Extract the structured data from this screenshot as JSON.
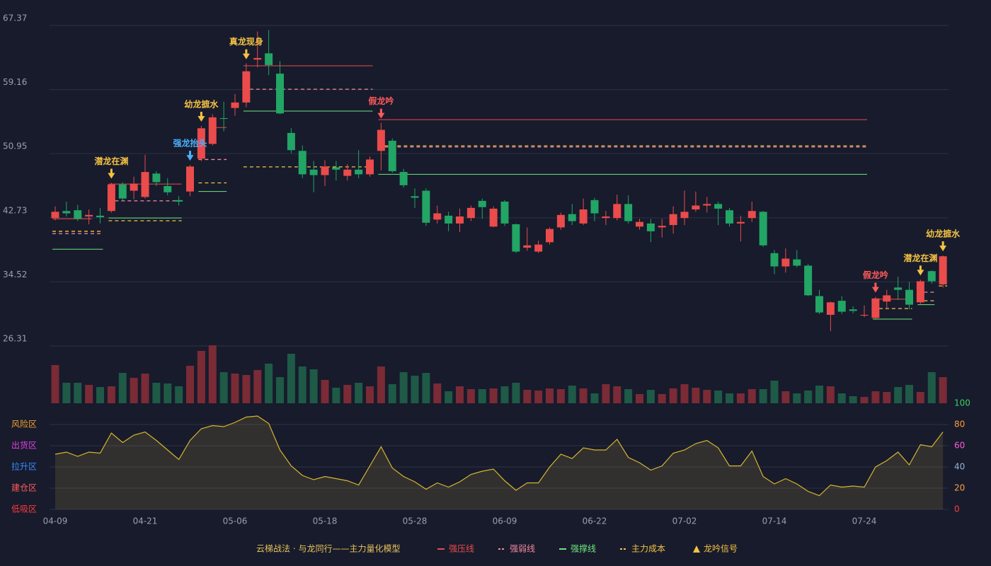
{
  "chart_data": {
    "type": "candlestick",
    "categories": [
      "04-09",
      null,
      null,
      null,
      null,
      null,
      null,
      null,
      "04-21",
      null,
      null,
      null,
      null,
      null,
      null,
      null,
      "05-06",
      null,
      null,
      null,
      null,
      null,
      null,
      null,
      "05-18",
      null,
      null,
      null,
      null,
      null,
      null,
      null,
      "05-28",
      null,
      null,
      null,
      null,
      null,
      null,
      null,
      "06-09",
      null,
      null,
      null,
      null,
      null,
      null,
      null,
      "06-22",
      null,
      null,
      null,
      null,
      null,
      null,
      null,
      "07-02",
      null,
      null,
      null,
      null,
      null,
      null,
      null,
      "07-14",
      null,
      null,
      null,
      null,
      null,
      null,
      null,
      "07-24",
      null,
      null,
      null,
      null,
      null,
      null,
      null
    ],
    "open": [
      42.7,
      43.6,
      43.7,
      42.9,
      43.0,
      43.6,
      47.0,
      46.2,
      45.4,
      48.4,
      46.8,
      45.0,
      46.1,
      50.3,
      52.2,
      55.5,
      56.8,
      57.5,
      63.0,
      63.8,
      61.2,
      53.6,
      51.3,
      48.9,
      48.2,
      49.2,
      48.1,
      48.9,
      48.3,
      51.3,
      52.6,
      48.6,
      45.5,
      46.2,
      42.5,
      43.0,
      42.0,
      42.7,
      44.9,
      41.6,
      44.8,
      41.9,
      38.9,
      38.4,
      39.6,
      41.5,
      43.2,
      42.0,
      45.0,
      42.7,
      42.7,
      44.5,
      41.6,
      42.0,
      41.5,
      41.8,
      42.7,
      43.8,
      44.3,
      44.5,
      43.7,
      42.0,
      42.7,
      43.5,
      38.2,
      36.5,
      37.4,
      36.6,
      32.7,
      30.3,
      32.1,
      31.0,
      30.2,
      29.9,
      32.0,
      33.8,
      33.5,
      31.9,
      35.9,
      34.2
    ],
    "high": [
      44.2,
      44.8,
      44.4,
      43.8,
      44.0,
      47.2,
      47.3,
      48.0,
      50.8,
      48.7,
      47.8,
      45.5,
      49.5,
      54.5,
      56.0,
      57.6,
      58.6,
      62.5,
      66.6,
      66.8,
      62.8,
      54.2,
      52.0,
      50.0,
      50.1,
      50.0,
      49.6,
      51.4,
      50.6,
      54.9,
      52.9,
      49.0,
      46.5,
      46.5,
      44.3,
      43.5,
      43.9,
      44.3,
      45.2,
      44.2,
      45.0,
      42.0,
      41.5,
      39.8,
      41.5,
      43.4,
      44.5,
      45.2,
      45.3,
      43.6,
      45.7,
      45.6,
      42.6,
      42.6,
      42.6,
      44.2,
      46.2,
      46.1,
      45.4,
      44.8,
      44.0,
      43.0,
      44.8,
      43.6,
      38.6,
      38.8,
      38.6,
      36.8,
      33.5,
      32.0,
      32.7,
      31.4,
      31.5,
      32.6,
      33.5,
      35.2,
      34.5,
      34.8,
      36.0,
      37.9
    ],
    "low": [
      42.4,
      42.9,
      42.3,
      41.9,
      42.0,
      43.4,
      44.9,
      45.1,
      45.2,
      46.8,
      45.6,
      44.3,
      45.5,
      50.0,
      52.0,
      53.8,
      55.8,
      56.9,
      62.0,
      61.0,
      56.0,
      51.0,
      47.8,
      46.0,
      46.8,
      47.5,
      47.5,
      47.8,
      48.0,
      48.8,
      48.5,
      46.6,
      44.0,
      41.7,
      42.0,
      41.0,
      40.9,
      42.3,
      42.6,
      41.5,
      41.7,
      38.2,
      38.5,
      38.2,
      39.3,
      41.2,
      41.8,
      41.8,
      42.3,
      41.8,
      42.4,
      42.0,
      41.2,
      39.6,
      40.2,
      40.7,
      41.8,
      43.5,
      43.4,
      41.8,
      41.6,
      39.7,
      42.2,
      39.0,
      35.5,
      35.7,
      36.4,
      32.7,
      30.4,
      28.2,
      30.4,
      30.5,
      30.0,
      29.8,
      31.0,
      32.2,
      31.0,
      31.7,
      34.3,
      33.8
    ],
    "close": [
      43.5,
      43.3,
      42.6,
      43.1,
      42.8,
      47.0,
      45.2,
      47.1,
      48.6,
      47.3,
      46.0,
      44.8,
      49.3,
      54.2,
      55.6,
      55.4,
      57.5,
      61.5,
      63.2,
      62.3,
      56.1,
      51.4,
      48.3,
      48.2,
      49.3,
      48.9,
      48.9,
      48.3,
      50.2,
      54.0,
      48.7,
      46.9,
      45.3,
      42.1,
      43.3,
      42.0,
      42.9,
      44.0,
      44.1,
      43.9,
      42.0,
      38.4,
      39.2,
      39.3,
      41.3,
      43.1,
      42.3,
      43.8,
      43.3,
      42.9,
      44.5,
      42.3,
      42.2,
      41.0,
      41.7,
      43.2,
      43.5,
      44.3,
      44.5,
      43.9,
      42.0,
      42.2,
      43.6,
      39.2,
      36.5,
      37.5,
      36.6,
      32.8,
      30.6,
      31.9,
      30.7,
      30.8,
      30.3,
      32.4,
      32.8,
      33.5,
      31.6,
      34.6,
      34.6,
      37.8
    ],
    "up_color": "#eb4b4b",
    "down_color": "#22a565",
    "ylim": [
      26.31,
      67.37
    ],
    "yticks": [
      26.31,
      34.52,
      42.73,
      50.95,
      59.16,
      67.37
    ],
    "grid": true,
    "levels": [
      {
        "name": "强压线",
        "color": "#eb4b4b",
        "dashed": false,
        "segments": [
          {
            "from": 0,
            "to": 3,
            "value": 42.6
          },
          {
            "from": 5,
            "to": 11,
            "value": 47.06
          },
          {
            "from": 14,
            "to": 15,
            "value": 54.3
          },
          {
            "from": 17,
            "to": 28,
            "value": 62.2
          },
          {
            "from": 29,
            "to": 72,
            "value": 55.3
          },
          {
            "from": 73,
            "to": 76,
            "value": 32.3
          }
        ]
      },
      {
        "name": "强弱线",
        "color": "#f28a9c",
        "dashed": true,
        "segments": [
          {
            "from": 0,
            "to": 4,
            "value": 40.7
          },
          {
            "from": 5,
            "to": 11,
            "value": 44.9
          },
          {
            "from": 13,
            "to": 15,
            "value": 50.2
          },
          {
            "from": 17,
            "to": 28,
            "value": 59.2
          },
          {
            "from": 29,
            "to": 72,
            "value": 51.8
          },
          {
            "from": 77,
            "to": 78,
            "value": 33.2
          }
        ]
      },
      {
        "name": "强撑线",
        "color": "#6fe67c",
        "dashed": false,
        "segments": [
          {
            "from": 0,
            "to": 4,
            "value": 38.7
          },
          {
            "from": 5,
            "to": 11,
            "value": 42.7
          },
          {
            "from": 13,
            "to": 15,
            "value": 46.1
          },
          {
            "from": 17,
            "to": 28,
            "value": 56.4
          },
          {
            "from": 29,
            "to": 72,
            "value": 48.3
          },
          {
            "from": 73,
            "to": 76,
            "value": 29.75
          },
          {
            "from": 77,
            "to": 78,
            "value": 31.6
          }
        ]
      },
      {
        "name": "主力成本",
        "color": "#f5c242",
        "dashed": true,
        "segments": [
          {
            "from": 0,
            "to": 4,
            "value": 41.0
          },
          {
            "from": 5,
            "to": 11,
            "value": 42.35
          },
          {
            "from": 13,
            "to": 15,
            "value": 47.2
          },
          {
            "from": 17,
            "to": 28,
            "value": 49.25
          },
          {
            "from": 29,
            "to": 72,
            "value": 51.95
          },
          {
            "from": 73,
            "to": 76,
            "value": 31.1
          },
          {
            "from": 77,
            "to": 78,
            "value": 32.1
          },
          {
            "from": 79,
            "to": 79,
            "value": 34.0
          }
        ]
      }
    ],
    "signal_name": "龙吟信号",
    "signal_color": "#f5c242",
    "signals": [
      {
        "index": 5,
        "label": "潜龙在渊",
        "color": "#f5c242"
      },
      {
        "index": 12,
        "label": "强龙抬头",
        "color": "#4ab0ff"
      },
      {
        "index": 13,
        "label": "幼龙摭水",
        "color": "#f5c242"
      },
      {
        "index": 17,
        "label": "真龙现身",
        "color": "#f5c242"
      },
      {
        "index": 29,
        "label": "假龙吟",
        "color": "#ff5a5a"
      },
      {
        "index": 73,
        "label": "假龙吟",
        "color": "#ff5a5a"
      },
      {
        "index": 77,
        "label": "潜龙在渊",
        "color": "#f5c242"
      },
      {
        "index": 79,
        "label": "幼龙摭水",
        "color": "#f5c242"
      }
    ],
    "volume": {
      "up_color": "#7a2b35",
      "down_color": "#1e5a46",
      "values": [
        54,
        29,
        29,
        26,
        23,
        24,
        43,
        36,
        42,
        29,
        28,
        24,
        53,
        74,
        82,
        44,
        42,
        40,
        47,
        56,
        37,
        70,
        52,
        48,
        33,
        22,
        26,
        29,
        24,
        52,
        27,
        44,
        39,
        43,
        28,
        17,
        24,
        20,
        20,
        21,
        24,
        29,
        19,
        18,
        21,
        20,
        25,
        21,
        14,
        27,
        24,
        20,
        13,
        19,
        13,
        21,
        27,
        22,
        19,
        18,
        14,
        14,
        20,
        20,
        32,
        17,
        14,
        18,
        25,
        24,
        14,
        10,
        9,
        17,
        16,
        23,
        26,
        16,
        44,
        37
      ]
    },
    "oscillator": {
      "color": "#d8b52c",
      "ylim": [
        0,
        100
      ],
      "yticks": [
        0,
        20,
        40,
        60,
        80,
        100
      ],
      "ytick_colors": [
        "#ff4040",
        "#ffa040",
        "#9ab0d8",
        "#ff5ad0",
        "#ff9a3a",
        "#3ad060"
      ],
      "zones": [
        {
          "label": "风险区",
          "value": 80,
          "color": "#f0a030"
        },
        {
          "label": "出货区",
          "value": 60,
          "color": "#e040e0"
        },
        {
          "label": "拉升区",
          "value": 40,
          "color": "#3a8aff"
        },
        {
          "label": "建仓区",
          "value": 20,
          "color": "#ff5a5a"
        },
        {
          "label": "低吸区",
          "value": 0,
          "color": "#ff3a3a"
        }
      ],
      "values": [
        52,
        54,
        50,
        54,
        53,
        72,
        63,
        70,
        73,
        65,
        56,
        47,
        65,
        76,
        79,
        78,
        82,
        87,
        88,
        81,
        56,
        41,
        32,
        28,
        31,
        29,
        27,
        23,
        41,
        59,
        39,
        31,
        26,
        19,
        25,
        21,
        26,
        33,
        36,
        38,
        27,
        18,
        25,
        25,
        40,
        52,
        48,
        58,
        56,
        56,
        66,
        49,
        44,
        37,
        41,
        53,
        56,
        62,
        65,
        58,
        41,
        41,
        55,
        31,
        24,
        29,
        24,
        17,
        13,
        23,
        21,
        22,
        21,
        40,
        46,
        54,
        42,
        61,
        59,
        73
      ]
    },
    "legend_title": "云梯战法 · 与龙同行——主力量化模型"
  }
}
